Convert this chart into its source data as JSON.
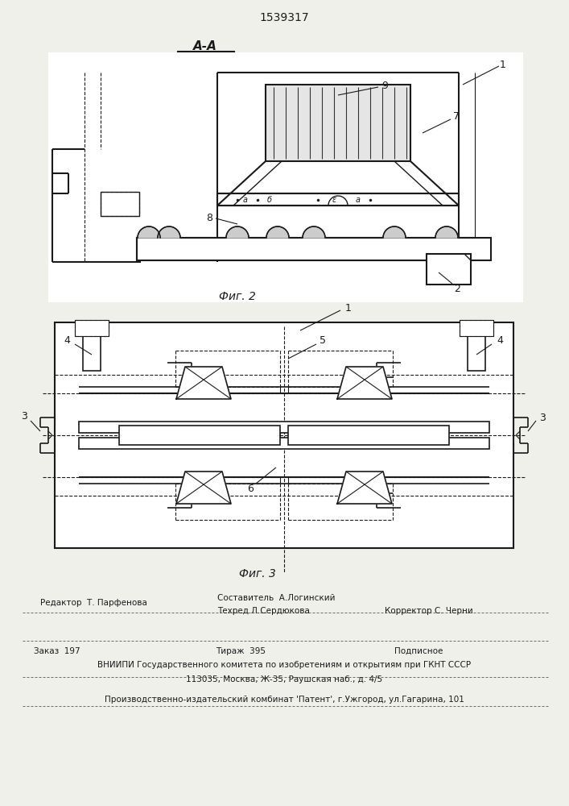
{
  "patent_number": "1539317",
  "fig2_label": "А-А",
  "fig2_caption": "Фиг. 2",
  "fig3_caption": "Фиг. 3",
  "footer_line1_col1": "Редактор  Т. Парфенова",
  "footer_line1_col2": "Составитель  А.Логинский",
  "footer_line2_col2": "Техред Л.Сердюкова",
  "footer_line2_col3": "Корректор С. Черни",
  "footer_zakaz": "Заказ  197",
  "footer_tirazh": "Тираж  395",
  "footer_podpisnoe": "Подписное",
  "footer_vniip1": "ВНИИПИ Государственного комитета по изобретениям и открытиям при ГКНТ СССР",
  "footer_vniip2": "113035, Москва, Ж-35, Раушская наб., д. 4/5",
  "footer_patent": "Производственно-издательский комбинат 'Патент', г.Ужгород, ул.Гагарина, 101",
  "bg_color": "#f0f0eb",
  "line_color": "#1a1a1a"
}
